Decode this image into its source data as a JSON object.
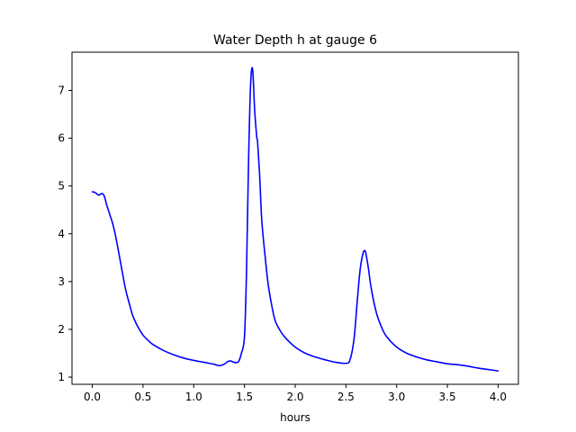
{
  "chart_data": {
    "type": "line",
    "title": "Water Depth h at gauge 6",
    "xlabel": "hours",
    "ylabel": "",
    "xlim": [
      -0.2,
      4.2
    ],
    "ylim": [
      0.85,
      7.8
    ],
    "x_ticks": [
      0.0,
      0.5,
      1.0,
      1.5,
      2.0,
      2.5,
      3.0,
      3.5,
      4.0
    ],
    "x_tick_labels": [
      "0.0",
      "0.5",
      "1.0",
      "1.5",
      "2.0",
      "2.5",
      "3.0",
      "3.5",
      "4.0"
    ],
    "y_ticks": [
      1,
      2,
      3,
      4,
      5,
      6,
      7
    ],
    "y_tick_labels": [
      "1",
      "2",
      "3",
      "4",
      "5",
      "6",
      "7"
    ],
    "grid": false,
    "legend": "none",
    "series": [
      {
        "color": "#0000ff",
        "x": [
          0.0,
          0.03,
          0.06,
          0.08,
          0.1,
          0.12,
          0.14,
          0.17,
          0.2,
          0.23,
          0.27,
          0.3,
          0.33,
          0.37,
          0.4,
          0.45,
          0.5,
          0.55,
          0.6,
          0.7,
          0.8,
          0.9,
          1.0,
          1.1,
          1.2,
          1.25,
          1.3,
          1.33,
          1.36,
          1.4,
          1.44,
          1.47,
          1.5,
          1.52,
          1.54,
          1.56,
          1.58,
          1.6,
          1.62,
          1.63,
          1.65,
          1.67,
          1.7,
          1.73,
          1.76,
          1.8,
          1.85,
          1.9,
          2.0,
          2.1,
          2.2,
          2.3,
          2.4,
          2.5,
          2.54,
          2.58,
          2.61,
          2.64,
          2.67,
          2.69,
          2.7,
          2.72,
          2.75,
          2.8,
          2.85,
          2.9,
          3.0,
          3.1,
          3.2,
          3.3,
          3.4,
          3.5,
          3.6,
          3.7,
          3.8,
          3.9,
          4.0
        ],
        "y": [
          4.88,
          4.86,
          4.81,
          4.83,
          4.84,
          4.78,
          4.62,
          4.42,
          4.22,
          3.95,
          3.5,
          3.15,
          2.82,
          2.5,
          2.28,
          2.05,
          1.88,
          1.77,
          1.68,
          1.56,
          1.47,
          1.4,
          1.35,
          1.31,
          1.27,
          1.24,
          1.27,
          1.32,
          1.34,
          1.31,
          1.32,
          1.5,
          1.85,
          3.2,
          5.5,
          7.1,
          7.45,
          6.6,
          6.05,
          5.9,
          5.2,
          4.3,
          3.6,
          3.0,
          2.6,
          2.2,
          1.98,
          1.83,
          1.63,
          1.5,
          1.42,
          1.36,
          1.31,
          1.29,
          1.36,
          1.8,
          2.55,
          3.25,
          3.6,
          3.64,
          3.55,
          3.3,
          2.85,
          2.35,
          2.05,
          1.85,
          1.63,
          1.5,
          1.42,
          1.36,
          1.32,
          1.28,
          1.26,
          1.23,
          1.19,
          1.16,
          1.13
        ]
      }
    ]
  }
}
